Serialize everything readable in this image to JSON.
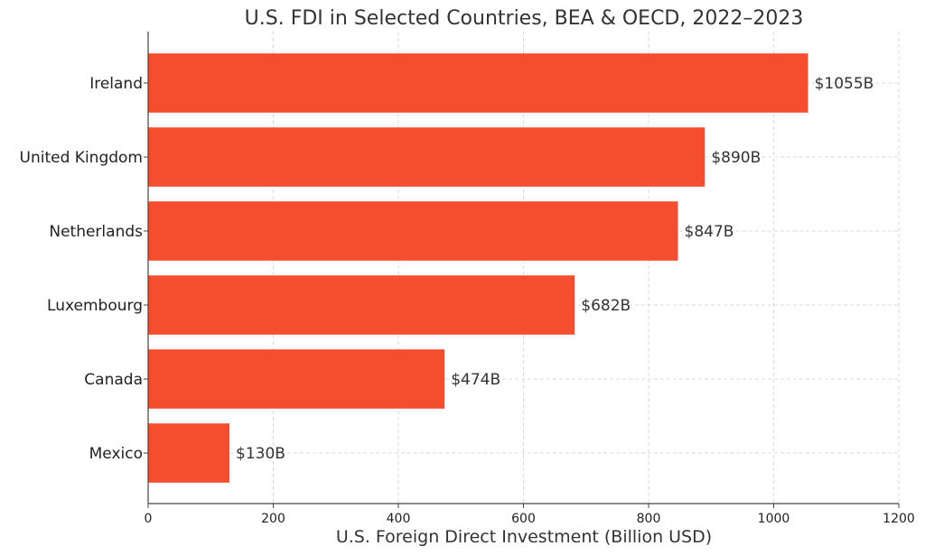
{
  "chart_data": {
    "type": "bar",
    "orientation": "horizontal",
    "title": "U.S. FDI in Selected Countries, BEA & OECD, 2022–2023",
    "xlabel": "U.S. Foreign Direct Investment (Billion USD)",
    "ylabel": "",
    "categories": [
      "Ireland",
      "United Kingdom",
      "Netherlands",
      "Luxembourg",
      "Canada",
      "Mexico"
    ],
    "values": [
      1055,
      890,
      847,
      682,
      474,
      130
    ],
    "data_labels": [
      "$1055B",
      "$890B",
      "$847B",
      "$682B",
      "$474B",
      "$130B"
    ],
    "xlim": [
      0,
      1200
    ],
    "xticks": [
      0,
      200,
      400,
      600,
      800,
      1000,
      1200
    ],
    "xtick_labels": [
      "0",
      "200",
      "400",
      "600",
      "800",
      "1000",
      "1200"
    ],
    "grid": true,
    "bar_color": "#F44E2E"
  }
}
